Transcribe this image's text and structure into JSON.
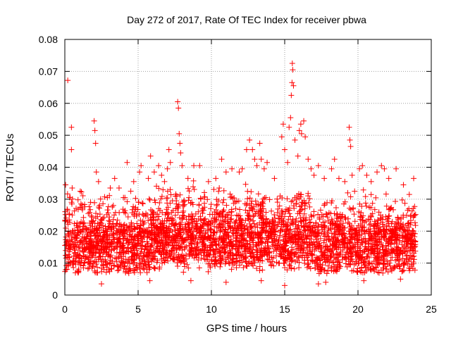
{
  "chart_data": {
    "type": "scatter",
    "title": "Day 272 of 2017, Rate Of TEC Index for receiver pbwa",
    "xlabel": "GPS time / hours",
    "ylabel": "ROTI / TECUs",
    "xlim": [
      0,
      25
    ],
    "ylim": [
      0,
      0.08
    ],
    "x_ticks": [
      "0",
      "5",
      "10",
      "15",
      "20",
      "25"
    ],
    "y_ticks": [
      "0",
      "0.01",
      "0.02",
      "0.03",
      "0.04",
      "0.05",
      "0.06",
      "0.07",
      "0.08"
    ],
    "x_tick_values": [
      0,
      5,
      10,
      15,
      20,
      25
    ],
    "y_tick_values": [
      0,
      0.01,
      0.02,
      0.03,
      0.04,
      0.05,
      0.06,
      0.07,
      0.08
    ],
    "grid": true,
    "marker": "plus",
    "colors": {
      "series": "#ff0000",
      "grid": "#a0a0a0",
      "axis": "#000000"
    },
    "series": [
      {
        "values": [
          [
            0.05,
            0.0345
          ],
          [
            0.2,
            0.0672
          ],
          [
            0.3,
            0.0235
          ],
          [
            0.45,
            0.0525
          ],
          [
            0.45,
            0.0455
          ],
          [
            0.5,
            0.0335
          ],
          [
            0.9,
            0.0298
          ],
          [
            1.1,
            0.0285
          ],
          [
            1.3,
            0.0215
          ],
          [
            1.6,
            0.0255
          ],
          [
            1.9,
            0.0215
          ],
          [
            2.0,
            0.0545
          ],
          [
            2.05,
            0.0515
          ],
          [
            2.1,
            0.0475
          ],
          [
            2.15,
            0.0385
          ],
          [
            2.3,
            0.0355
          ],
          [
            2.9,
            0.0305
          ],
          [
            3.1,
            0.0335
          ],
          [
            3.4,
            0.0365
          ],
          [
            3.7,
            0.0335
          ],
          [
            4.0,
            0.0305
          ],
          [
            4.1,
            0.0305
          ],
          [
            4.25,
            0.0415
          ],
          [
            4.5,
            0.0325
          ],
          [
            4.7,
            0.0355
          ],
          [
            5.1,
            0.0385
          ],
          [
            5.2,
            0.0405
          ],
          [
            5.7,
            0.0365
          ],
          [
            5.85,
            0.0435
          ],
          [
            6.1,
            0.0385
          ],
          [
            6.4,
            0.0405
          ],
          [
            6.6,
            0.0375
          ],
          [
            6.8,
            0.0355
          ],
          [
            7.0,
            0.0395
          ],
          [
            7.1,
            0.0455
          ],
          [
            7.2,
            0.0415
          ],
          [
            7.7,
            0.0605
          ],
          [
            7.75,
            0.0585
          ],
          [
            7.8,
            0.0505
          ],
          [
            7.85,
            0.0475
          ],
          [
            7.9,
            0.0445
          ],
          [
            8.0,
            0.0405
          ],
          [
            8.4,
            0.0365
          ],
          [
            8.8,
            0.0405
          ],
          [
            9.2,
            0.0405
          ],
          [
            9.8,
            0.0355
          ],
          [
            10.3,
            0.0365
          ],
          [
            10.7,
            0.0425
          ],
          [
            11.0,
            0.0385
          ],
          [
            11.4,
            0.0395
          ],
          [
            11.9,
            0.0385
          ],
          [
            12.1,
            0.0395
          ],
          [
            12.4,
            0.0455
          ],
          [
            12.6,
            0.0485
          ],
          [
            12.8,
            0.0455
          ],
          [
            12.95,
            0.0425
          ],
          [
            13.1,
            0.0405
          ],
          [
            13.3,
            0.0475
          ],
          [
            13.4,
            0.0425
          ],
          [
            13.6,
            0.0395
          ],
          [
            13.8,
            0.0415
          ],
          [
            14.3,
            0.0365
          ],
          [
            14.8,
            0.0495
          ],
          [
            14.9,
            0.0535
          ],
          [
            15.0,
            0.0455
          ],
          [
            15.2,
            0.0415
          ],
          [
            15.3,
            0.0525
          ],
          [
            15.4,
            0.0555
          ],
          [
            15.45,
            0.0625
          ],
          [
            15.5,
            0.0665
          ],
          [
            15.52,
            0.0725
          ],
          [
            15.55,
            0.0705
          ],
          [
            15.6,
            0.0655
          ],
          [
            15.7,
            0.0485
          ],
          [
            15.9,
            0.0435
          ],
          [
            16.0,
            0.0515
          ],
          [
            16.1,
            0.0535
          ],
          [
            16.15,
            0.0505
          ],
          [
            16.3,
            0.0545
          ],
          [
            16.4,
            0.0495
          ],
          [
            16.6,
            0.0425
          ],
          [
            16.8,
            0.0395
          ],
          [
            17.0,
            0.0375
          ],
          [
            17.3,
            0.0405
          ],
          [
            17.7,
            0.0365
          ],
          [
            18.2,
            0.0395
          ],
          [
            18.4,
            0.0425
          ],
          [
            18.7,
            0.0365
          ],
          [
            19.1,
            0.0355
          ],
          [
            19.4,
            0.0525
          ],
          [
            19.45,
            0.0485
          ],
          [
            19.5,
            0.0465
          ],
          [
            19.6,
            0.0375
          ],
          [
            20.1,
            0.0395
          ],
          [
            20.3,
            0.0405
          ],
          [
            20.6,
            0.0375
          ],
          [
            20.9,
            0.0355
          ],
          [
            21.3,
            0.0385
          ],
          [
            21.6,
            0.0405
          ],
          [
            21.8,
            0.0395
          ],
          [
            22.1,
            0.0365
          ],
          [
            22.6,
            0.0395
          ],
          [
            23.1,
            0.0345
          ],
          [
            23.5,
            0.0315
          ],
          [
            23.8,
            0.0365
          ],
          [
            2.5,
            0.0035
          ],
          [
            5.8,
            0.0045
          ],
          [
            8.6,
            0.0045
          ],
          [
            11.0,
            0.004
          ],
          [
            13.4,
            0.0045
          ],
          [
            15.0,
            0.003
          ],
          [
            17.3,
            0.0035
          ],
          [
            17.8,
            0.004
          ],
          [
            20.4,
            0.0045
          ],
          [
            22.9,
            0.005
          ]
        ]
      }
    ],
    "dense_band": {
      "description_free": true,
      "x_range": [
        0,
        23.95
      ],
      "count": 3600,
      "base_median": 0.0135,
      "spread": 0.0085
    }
  }
}
